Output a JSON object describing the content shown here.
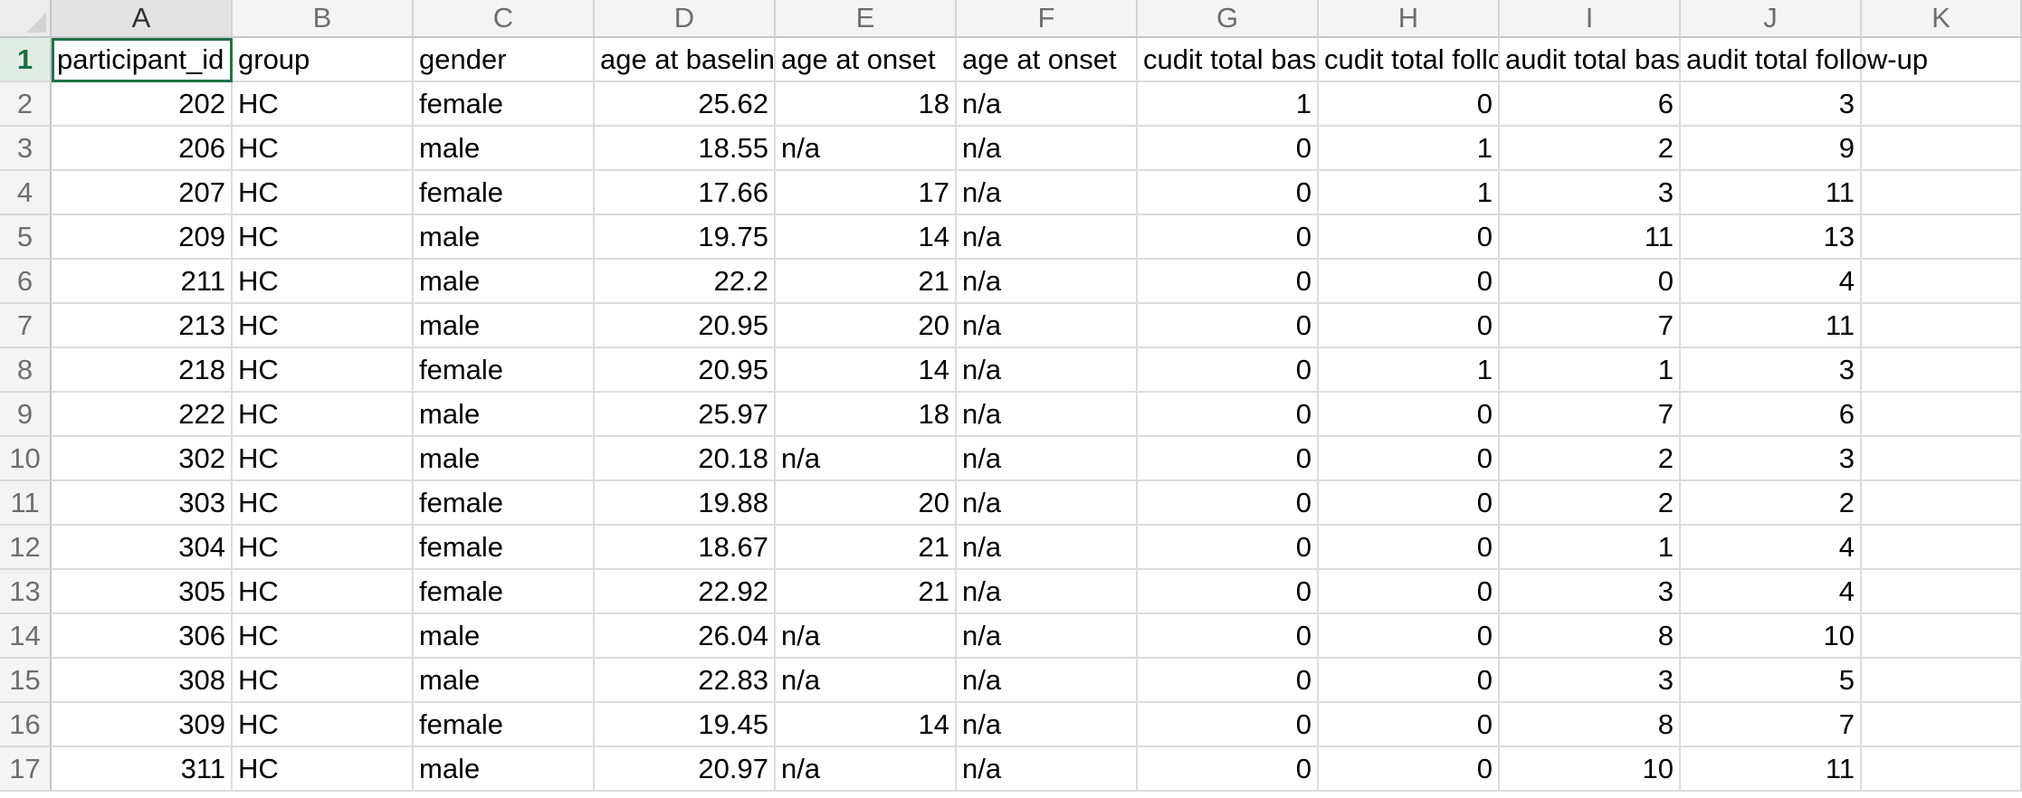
{
  "columns": [
    "A",
    "B",
    "C",
    "D",
    "E",
    "F",
    "G",
    "H",
    "I",
    "J",
    "K"
  ],
  "row_numbers": [
    "1",
    "2",
    "3",
    "4",
    "5",
    "6",
    "7",
    "8",
    "9",
    "10",
    "11",
    "12",
    "13",
    "14",
    "15",
    "16",
    "17"
  ],
  "header_row": [
    "participant_id",
    "group",
    "gender",
    "age at baseline",
    "age at onset",
    "age at onset",
    "cudit total baseline",
    "cudit total follow-up",
    "audit total baseline",
    "audit total follow-up",
    ""
  ],
  "rows": [
    [
      "202",
      "HC",
      "female",
      "25.62",
      "18",
      "n/a",
      "1",
      "0",
      "6",
      "3",
      ""
    ],
    [
      "206",
      "HC",
      "male",
      "18.55",
      "n/a",
      "n/a",
      "0",
      "1",
      "2",
      "9",
      ""
    ],
    [
      "207",
      "HC",
      "female",
      "17.66",
      "17",
      "n/a",
      "0",
      "1",
      "3",
      "11",
      ""
    ],
    [
      "209",
      "HC",
      "male",
      "19.75",
      "14",
      "n/a",
      "0",
      "0",
      "11",
      "13",
      ""
    ],
    [
      "211",
      "HC",
      "male",
      "22.2",
      "21",
      "n/a",
      "0",
      "0",
      "0",
      "4",
      ""
    ],
    [
      "213",
      "HC",
      "male",
      "20.95",
      "20",
      "n/a",
      "0",
      "0",
      "7",
      "11",
      ""
    ],
    [
      "218",
      "HC",
      "female",
      "20.95",
      "14",
      "n/a",
      "0",
      "1",
      "1",
      "3",
      ""
    ],
    [
      "222",
      "HC",
      "male",
      "25.97",
      "18",
      "n/a",
      "0",
      "0",
      "7",
      "6",
      ""
    ],
    [
      "302",
      "HC",
      "male",
      "20.18",
      "n/a",
      "n/a",
      "0",
      "0",
      "2",
      "3",
      ""
    ],
    [
      "303",
      "HC",
      "female",
      "19.88",
      "20",
      "n/a",
      "0",
      "0",
      "2",
      "2",
      ""
    ],
    [
      "304",
      "HC",
      "female",
      "18.67",
      "21",
      "n/a",
      "0",
      "0",
      "1",
      "4",
      ""
    ],
    [
      "305",
      "HC",
      "female",
      "22.92",
      "21",
      "n/a",
      "0",
      "0",
      "3",
      "4",
      ""
    ],
    [
      "306",
      "HC",
      "male",
      "26.04",
      "n/a",
      "n/a",
      "0",
      "0",
      "8",
      "10",
      ""
    ],
    [
      "308",
      "HC",
      "male",
      "22.83",
      "n/a",
      "n/a",
      "0",
      "0",
      "3",
      "5",
      ""
    ],
    [
      "309",
      "HC",
      "female",
      "19.45",
      "14",
      "n/a",
      "0",
      "0",
      "8",
      "7",
      ""
    ],
    [
      "311",
      "HC",
      "male",
      "20.97",
      "n/a",
      "n/a",
      "0",
      "0",
      "10",
      "11",
      ""
    ]
  ],
  "selected_cell": "A1",
  "colors": {
    "selection": "#217346",
    "header_bg": "#f4f4f4",
    "gridline": "#dcdcdc"
  }
}
